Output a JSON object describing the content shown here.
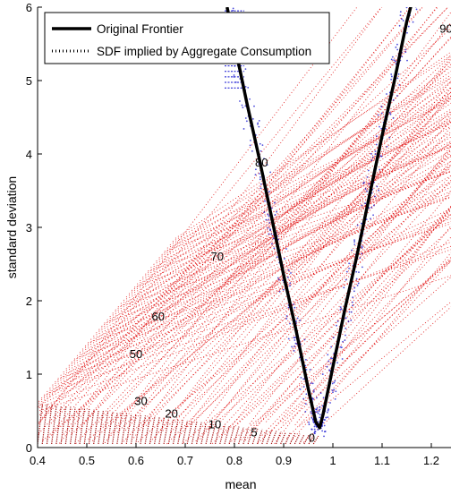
{
  "chart_data": {
    "type": "line",
    "xlabel": "mean",
    "ylabel": "standard deviation",
    "xlim": [
      0.4,
      1.24
    ],
    "ylim": [
      0,
      6
    ],
    "xticks": [
      "0.4",
      "0.5",
      "0.6",
      "0.7",
      "0.8",
      "0.9",
      "1",
      "1.1",
      "1.2"
    ],
    "yticks": [
      "0",
      "1",
      "2",
      "3",
      "4",
      "5",
      "6"
    ],
    "grid": false,
    "legend_position": "top-left",
    "colors": {
      "frontier": "#000000",
      "red_region": "#e00000",
      "blue_region": "#1010d0"
    },
    "series": [
      {
        "name": "Original Frontier",
        "x": [
          0.785,
          0.8,
          0.825,
          0.85,
          0.875,
          0.9,
          0.925,
          0.95,
          0.965,
          0.973,
          0.98,
          1.0,
          1.025,
          1.05,
          1.075,
          1.1,
          1.125,
          1.15,
          1.17
        ],
        "y": [
          6.0,
          5.5,
          4.7,
          3.95,
          3.15,
          2.35,
          1.6,
          0.8,
          0.35,
          0.27,
          0.45,
          1.1,
          1.9,
          2.65,
          3.45,
          4.25,
          5.0,
          5.8,
          6.3
        ]
      },
      {
        "name": "SDF implied by Aggregate Consumption"
      }
    ],
    "contour_labels": [
      {
        "text": "80",
        "x": 0.855,
        "y": 3.83
      },
      {
        "text": "70",
        "x": 0.765,
        "y": 2.55
      },
      {
        "text": "60",
        "x": 0.645,
        "y": 1.73
      },
      {
        "text": "50",
        "x": 0.6,
        "y": 1.22
      },
      {
        "text": "30",
        "x": 0.61,
        "y": 0.58
      },
      {
        "text": "20",
        "x": 0.672,
        "y": 0.41
      },
      {
        "text": "10",
        "x": 0.76,
        "y": 0.26
      },
      {
        "text": "5",
        "x": 0.84,
        "y": 0.15
      },
      {
        "text": "0",
        "x": 0.957,
        "y": 0.08
      },
      {
        "text": "90",
        "x": 1.23,
        "y": 5.65
      }
    ]
  }
}
